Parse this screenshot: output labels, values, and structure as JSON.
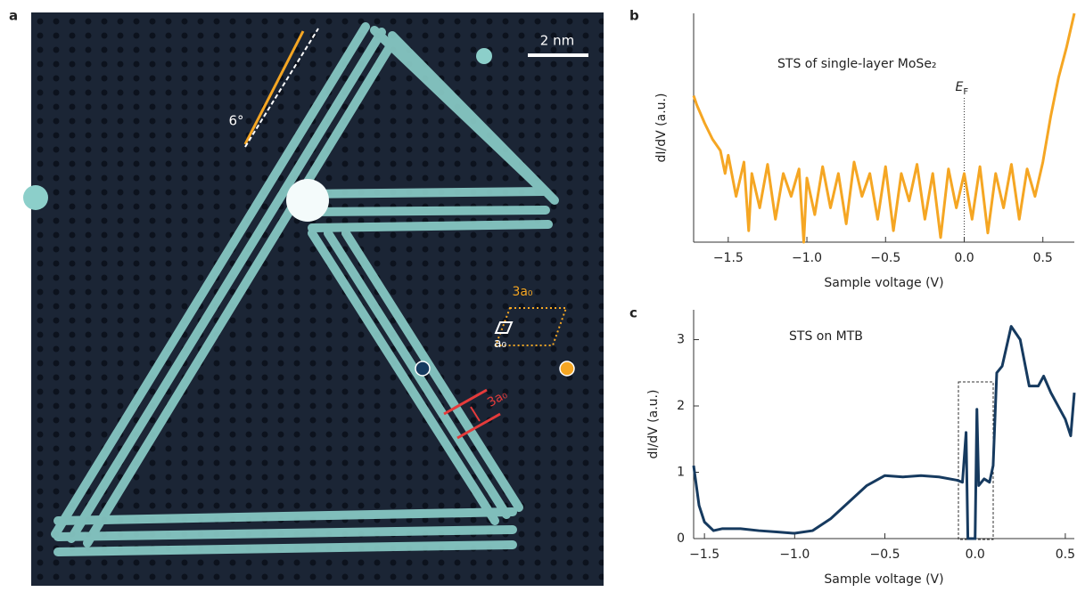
{
  "image_panel": {
    "panel": "a",
    "scale_bar": "2 nm",
    "angle": "6°",
    "supercell": "3a₀",
    "unit_cell": "a₀",
    "width": "3a₀"
  },
  "chart_data": [
    {
      "type": "line",
      "panel": "b",
      "title": "STS of single-layer MoSe₂",
      "x_label": "Sample voltage (V)",
      "y_label": "dI/dV (a.u.)",
      "ef_label": "E",
      "ef_sub": "F",
      "ef_x": 0,
      "xlim": [
        -1.72,
        0.7
      ],
      "ylim": [
        0,
        1
      ],
      "xticks": [
        {
          "value": -1.5,
          "label": "−1.5"
        },
        {
          "value": -1.0,
          "label": "−1.0"
        },
        {
          "value": -0.5,
          "label": "−0.5"
        },
        {
          "value": 0,
          "label": "0.0"
        },
        0.5
      ],
      "yticks": [],
      "x": [
        -1.72,
        -1.7,
        -1.65,
        -1.6,
        -1.55,
        -1.52,
        -1.5,
        -1.45,
        -1.4,
        -1.37,
        -1.35,
        -1.3,
        -1.25,
        -1.2,
        -1.15,
        -1.1,
        -1.05,
        -1.02,
        -1.0,
        -0.95,
        -0.9,
        -0.85,
        -0.8,
        -0.75,
        -0.7,
        -0.65,
        -0.6,
        -0.55,
        -0.5,
        -0.45,
        -0.4,
        -0.35,
        -0.3,
        -0.25,
        -0.2,
        -0.15,
        -0.1,
        -0.05,
        0.0,
        0.05,
        0.1,
        0.15,
        0.2,
        0.25,
        0.3,
        0.35,
        0.4,
        0.45,
        0.5,
        0.55,
        0.6,
        0.65,
        0.7
      ],
      "series": [
        {
          "color": "#f5a623",
          "values": [
            0.64,
            0.6,
            0.52,
            0.45,
            0.4,
            0.3,
            0.38,
            0.2,
            0.35,
            0.05,
            0.3,
            0.15,
            0.34,
            0.1,
            0.3,
            0.2,
            0.32,
            0.0,
            0.28,
            0.12,
            0.33,
            0.15,
            0.3,
            0.08,
            0.35,
            0.2,
            0.3,
            0.1,
            0.33,
            0.05,
            0.3,
            0.18,
            0.34,
            0.1,
            0.3,
            0.02,
            0.32,
            0.15,
            0.3,
            0.1,
            0.33,
            0.04,
            0.3,
            0.15,
            0.34,
            0.1,
            0.32,
            0.2,
            0.35,
            0.55,
            0.72,
            0.85,
            1.0
          ]
        }
      ]
    },
    {
      "type": "line",
      "panel": "c",
      "title": "STS on MTB",
      "x_label": "Sample voltage (V)",
      "y_label": "dI/dV (a.u.)",
      "xlim": [
        -1.56,
        0.55
      ],
      "ylim": [
        0,
        3.45
      ],
      "xticks": [
        {
          "value": -1.5,
          "label": "−1.5"
        },
        {
          "value": -1.0,
          "label": "−1.0"
        },
        {
          "value": -0.5,
          "label": "−0.5"
        },
        {
          "value": 0,
          "label": "0.0"
        },
        0.5
      ],
      "yticks": [
        0,
        1,
        2,
        3
      ],
      "x": [
        -1.56,
        -1.53,
        -1.5,
        -1.45,
        -1.4,
        -1.3,
        -1.2,
        -1.1,
        -1.0,
        -0.9,
        -0.8,
        -0.7,
        -0.6,
        -0.5,
        -0.4,
        -0.3,
        -0.2,
        -0.1,
        -0.07,
        -0.05,
        -0.04,
        0.0,
        0.01,
        0.02,
        0.05,
        0.08,
        0.1,
        0.12,
        0.15,
        0.2,
        0.25,
        0.3,
        0.35,
        0.38,
        0.42,
        0.5,
        0.53,
        0.55
      ],
      "series": [
        {
          "color": "#163a5f",
          "values": [
            1.1,
            0.5,
            0.25,
            0.12,
            0.15,
            0.15,
            0.12,
            0.1,
            0.08,
            0.12,
            0.3,
            0.55,
            0.8,
            0.95,
            0.93,
            0.95,
            0.93,
            0.88,
            0.85,
            1.6,
            0.0,
            0.0,
            1.95,
            0.8,
            0.9,
            0.85,
            1.1,
            2.5,
            2.6,
            3.2,
            3.0,
            2.3,
            2.3,
            2.45,
            2.2,
            1.8,
            1.55,
            2.2
          ]
        }
      ]
    }
  ]
}
